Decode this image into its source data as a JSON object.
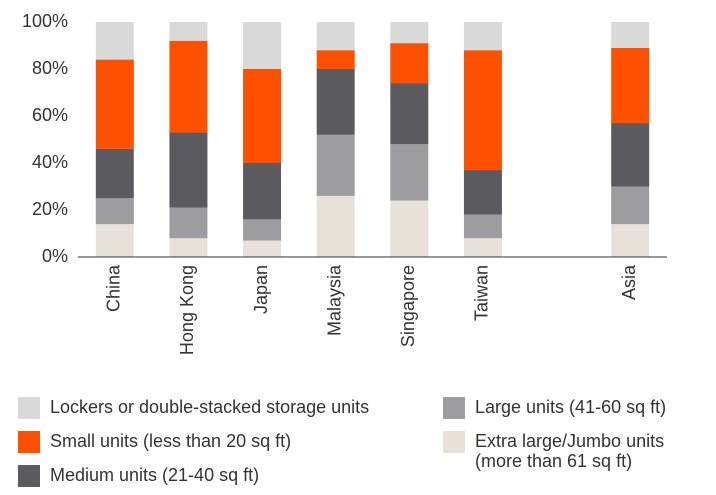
{
  "chart_data": {
    "type": "stacked_bar",
    "categories": [
      "China",
      "Hong Kong",
      "Japan",
      "Malaysia",
      "Singapore",
      "Taiwan",
      null,
      "Asia"
    ],
    "series": [
      {
        "name": "Extra large/Jumbo units (more than 61 sq ft)",
        "color": "#e6e1d9",
        "values": [
          14,
          8,
          7,
          26,
          24,
          8,
          null,
          14
        ]
      },
      {
        "name": "Large units (41-60 sq ft)",
        "color": "#9d9d9f",
        "values": [
          11,
          13,
          9,
          26,
          24,
          10,
          null,
          16
        ]
      },
      {
        "name": "Medium units (21-40 sq ft)",
        "color": "#5b5b5f",
        "values": [
          21,
          32,
          24,
          28,
          26,
          19,
          null,
          27
        ]
      },
      {
        "name": "Small units (less than 20 sq ft)",
        "color": "#ff5000",
        "values": [
          38,
          39,
          40,
          8,
          17,
          51,
          null,
          32
        ]
      },
      {
        "name": "Lockers or double-stacked storage units",
        "color": "#d9d9d9",
        "values": [
          16,
          8,
          20,
          12,
          9,
          12,
          null,
          11
        ]
      }
    ],
    "ylim": [
      0,
      100
    ],
    "yticks": [
      {
        "value": 0,
        "label": "0%"
      },
      {
        "value": 20,
        "label": "20%"
      },
      {
        "value": 40,
        "label": "40%"
      },
      {
        "value": 60,
        "label": "60%"
      },
      {
        "value": 80,
        "label": "80%"
      },
      {
        "value": 100,
        "label": "100%"
      }
    ]
  }
}
